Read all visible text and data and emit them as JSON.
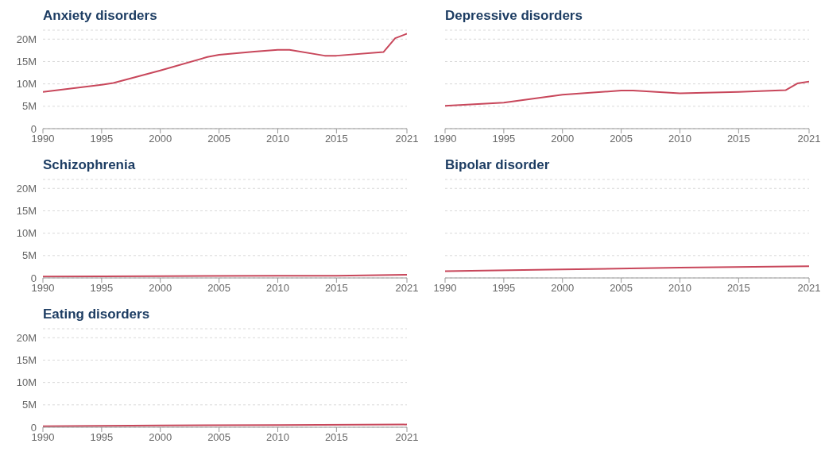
{
  "chart_data": [
    {
      "type": "line",
      "title": "Anxiety disorders",
      "x": [
        1990,
        1995,
        1996,
        2000,
        2004,
        2005,
        2008,
        2010,
        2011,
        2014,
        2015,
        2019,
        2020,
        2021
      ],
      "series": [
        {
          "color": "#c8475b",
          "values": [
            8.2,
            9.8,
            10.2,
            13,
            16,
            16.5,
            17.2,
            17.6,
            17.6,
            16.3,
            16.3,
            17.1,
            20.2,
            21.2
          ]
        }
      ],
      "xlim": [
        1990,
        2021
      ],
      "xticks": [
        1990,
        1995,
        2000,
        2005,
        2010,
        2015,
        2021
      ],
      "ylim": [
        0,
        22
      ],
      "yticks": [
        {
          "value": 0,
          "label": "0"
        },
        {
          "value": 5,
          "label": "5M"
        },
        {
          "value": 10,
          "label": "10M"
        },
        {
          "value": 15,
          "label": "15M"
        },
        {
          "value": 20,
          "label": "20M"
        }
      ],
      "grid": "y",
      "marker": "none"
    },
    {
      "type": "line",
      "title": "Depressive disorders",
      "x": [
        1990,
        1995,
        2000,
        2005,
        2006,
        2010,
        2015,
        2019,
        2020,
        2021
      ],
      "series": [
        {
          "color": "#c8475b",
          "values": [
            5.1,
            5.8,
            7.6,
            8.5,
            8.5,
            7.9,
            8.2,
            8.6,
            10.1,
            10.5
          ]
        }
      ],
      "xlim": [
        1990,
        2021
      ],
      "xticks": [
        1990,
        1995,
        2000,
        2005,
        2010,
        2015,
        2021
      ],
      "ylim": [
        0,
        22
      ],
      "yticks": [
        {
          "value": 0,
          "label": null
        },
        {
          "value": 5,
          "label": null
        },
        {
          "value": 10,
          "label": null
        },
        {
          "value": 15,
          "label": null
        },
        {
          "value": 20,
          "label": null
        }
      ],
      "grid": "y",
      "marker": "none",
      "tick_labels": "x"
    },
    {
      "type": "line",
      "title": "Schizophrenia",
      "x": [
        1990,
        2000,
        2010,
        2015,
        2021
      ],
      "series": [
        {
          "color": "#c8475b",
          "values": [
            0.3,
            0.4,
            0.5,
            0.5,
            0.7
          ]
        }
      ],
      "xlim": [
        1990,
        2021
      ],
      "xticks": [
        1990,
        1995,
        2000,
        2005,
        2010,
        2015,
        2021
      ],
      "ylim": [
        0,
        22
      ],
      "yticks": [
        {
          "value": 0,
          "label": "0"
        },
        {
          "value": 5,
          "label": "5M"
        },
        {
          "value": 10,
          "label": "10M"
        },
        {
          "value": 15,
          "label": "15M"
        },
        {
          "value": 20,
          "label": "20M"
        }
      ],
      "grid": "y",
      "marker": "none"
    },
    {
      "type": "line",
      "title": "Bipolar disorder",
      "x": [
        1990,
        2000,
        2010,
        2021
      ],
      "series": [
        {
          "color": "#c8475b",
          "values": [
            1.5,
            1.9,
            2.3,
            2.6
          ]
        }
      ],
      "xlim": [
        1990,
        2021
      ],
      "xticks": [
        1990,
        1995,
        2000,
        2005,
        2010,
        2015,
        2021
      ],
      "ylim": [
        0,
        22
      ],
      "yticks": [
        {
          "value": 0,
          "label": null
        },
        {
          "value": 5,
          "label": null
        },
        {
          "value": 10,
          "label": null
        },
        {
          "value": 15,
          "label": null
        },
        {
          "value": 20,
          "label": null
        }
      ],
      "grid": "y",
      "marker": "none",
      "tick_labels": "x"
    },
    {
      "type": "line",
      "title": "Eating disorders",
      "x": [
        1990,
        2000,
        2010,
        2021
      ],
      "series": [
        {
          "color": "#c8475b",
          "values": [
            0.2,
            0.4,
            0.5,
            0.6
          ]
        }
      ],
      "xlim": [
        1990,
        2021
      ],
      "xticks": [
        1990,
        1995,
        2000,
        2005,
        2010,
        2015,
        2021
      ],
      "ylim": [
        0,
        22
      ],
      "yticks": [
        {
          "value": 0,
          "label": "0"
        },
        {
          "value": 5,
          "label": "5M"
        },
        {
          "value": 10,
          "label": "10M"
        },
        {
          "value": 15,
          "label": "15M"
        },
        {
          "value": 20,
          "label": "20M"
        }
      ],
      "grid": "y",
      "marker": "none"
    }
  ]
}
